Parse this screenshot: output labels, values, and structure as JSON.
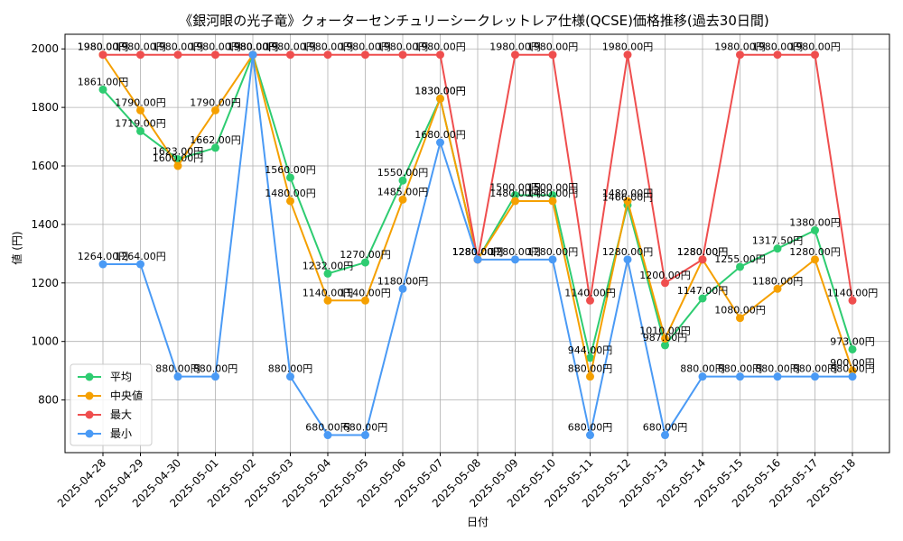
{
  "chart_data": {
    "type": "line",
    "title": "《銀河眼の光子竜》クォーターセンチュリーシークレットレア仕様(QCSE)価格推移(過去30日間)",
    "xlabel": "日付",
    "ylabel": "値 (円)",
    "ylim": [
      620,
      2050
    ],
    "yticks": [
      800,
      1000,
      1200,
      1400,
      1600,
      1800,
      2000
    ],
    "grid": true,
    "legend_position": "lower-left",
    "value_suffix": "円",
    "categories": [
      "2025-04-28",
      "2025-04-29",
      "2025-04-30",
      "2025-05-01",
      "2025-05-02",
      "2025-05-03",
      "2025-05-04",
      "2025-05-05",
      "2025-05-06",
      "2025-05-07",
      "2025-05-08",
      "2025-05-09",
      "2025-05-10",
      "2025-05-11",
      "2025-05-12",
      "2025-05-13",
      "2025-05-14",
      "2025-05-15",
      "2025-05-16",
      "2025-05-17",
      "2025-05-18"
    ],
    "series": [
      {
        "name": "平均",
        "color": "#2ecc71",
        "values": [
          1861,
          1719,
          1623,
          1662,
          1980,
          1560,
          1232,
          1270,
          1550,
          1830,
          1280,
          1500,
          1500,
          944,
          1466,
          987,
          1147,
          1255,
          1317.5,
          1380,
          973
        ]
      },
      {
        "name": "中央値",
        "color": "#f5a000",
        "values": [
          1980,
          1790,
          1600,
          1790,
          1980,
          1480,
          1140,
          1140,
          1485,
          1830,
          1280,
          1480,
          1480,
          880,
          1480,
          1010,
          1280,
          1080,
          1180,
          1280,
          900
        ]
      },
      {
        "name": "最大",
        "color": "#ef4e4e",
        "values": [
          1980,
          1980,
          1980,
          1980,
          1980,
          1980,
          1980,
          1980,
          1980,
          1980,
          1280,
          1980,
          1980,
          1140,
          1980,
          1200,
          1280,
          1980,
          1980,
          1980,
          1140
        ]
      },
      {
        "name": "最小",
        "color": "#4a9af5",
        "values": [
          1264,
          1264,
          880,
          880,
          1980,
          880,
          680,
          680,
          1180,
          1680,
          1280,
          1280,
          1280,
          680,
          1280,
          680,
          880,
          880,
          880,
          880,
          880
        ]
      }
    ]
  }
}
